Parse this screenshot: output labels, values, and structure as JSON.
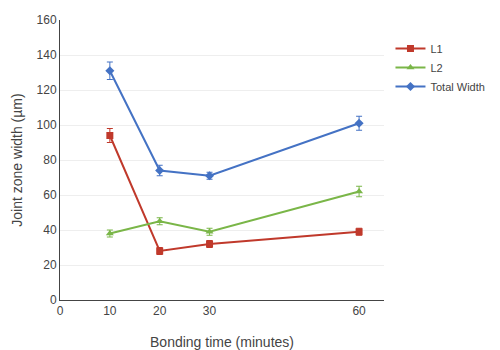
{
  "chart_data": {
    "type": "line",
    "x_label": "Bonding time (minutes)",
    "y_label": "Joint zone width (µm)",
    "x": [
      10,
      20,
      30,
      60
    ],
    "series": [
      {
        "name": "L1",
        "color": "#c0392b",
        "marker": "square",
        "values": [
          94,
          28,
          32,
          39
        ],
        "yerr": [
          4,
          2,
          2,
          2
        ]
      },
      {
        "name": "L2",
        "color": "#7ab648",
        "marker": "triangle-up",
        "values": [
          38,
          45,
          39,
          62
        ],
        "yerr": [
          2,
          2,
          2,
          3
        ]
      },
      {
        "name": "Total Width",
        "color": "#4472c4",
        "marker": "diamond",
        "values": [
          131,
          74,
          71,
          101
        ],
        "yerr": [
          5,
          3,
          2,
          4
        ]
      }
    ],
    "xlim": [
      0,
      65
    ],
    "ylim": [
      0,
      160
    ],
    "xticks": [
      0,
      10,
      20,
      30,
      60
    ],
    "yticks": [
      0,
      20,
      40,
      60,
      80,
      100,
      120,
      140,
      160
    ],
    "grid": true,
    "legend": "right"
  }
}
